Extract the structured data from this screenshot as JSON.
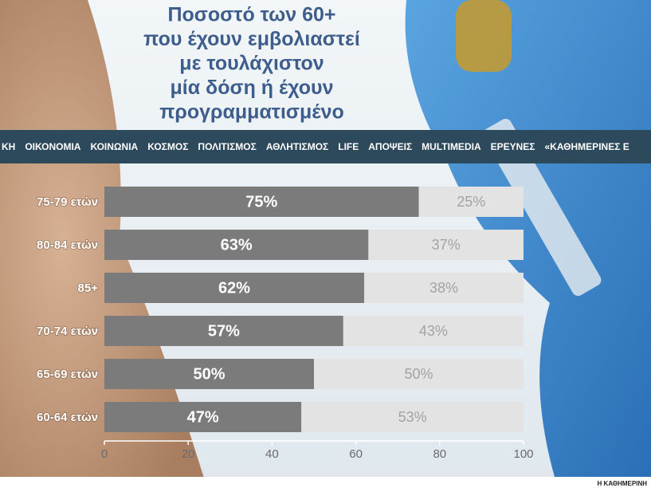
{
  "chart_data": {
    "type": "stacked-barh",
    "title": [
      "Ποσοστό των 60+",
      "που έχουν εμβολιαστεί",
      "με τουλάχιστον",
      "μία δόση ή έχουν",
      "προγραμματισμένο"
    ],
    "categories": [
      "75-79 ετών",
      "80-84 ετών",
      "85+",
      "70-74 ετών",
      "65-69 ετών",
      "60-64 ετών"
    ],
    "series": [
      {
        "color": "#7b7b7b",
        "values": [
          75,
          63,
          62,
          57,
          50,
          47
        ],
        "value_labels": [
          "75%",
          "63%",
          "62%",
          "57%",
          "50%",
          "47%"
        ]
      },
      {
        "color": "#e3e3e3",
        "values": [
          25,
          37,
          38,
          43,
          50,
          53
        ],
        "value_labels": [
          "25%",
          "37%",
          "38%",
          "43%",
          "50%",
          "53%"
        ]
      }
    ],
    "xlim": [
      0,
      100
    ],
    "xticks": [
      0,
      20,
      40,
      60,
      80,
      100
    ],
    "source": "Η ΚΑΘΗΜΕΡΙΝΗ"
  },
  "nav": {
    "items": [
      "ΚΗ",
      "ΟΙΚΟΝΟΜΙΑ",
      "ΚΟΙΝΩΝΙΑ",
      "ΚΟΣΜΟΣ",
      "ΠΟΛΙΤΙΣΜΟΣ",
      "ΑΘΛΗΤΙΣΜΟΣ",
      "LIFE",
      "ΑΠΟΨΕΙΣ",
      "MULTIMEDIA",
      "ΕΡΕΥΝΕΣ",
      "«ΚΑΘΗΜΕΡΙΝΕΣ Ε"
    ]
  }
}
